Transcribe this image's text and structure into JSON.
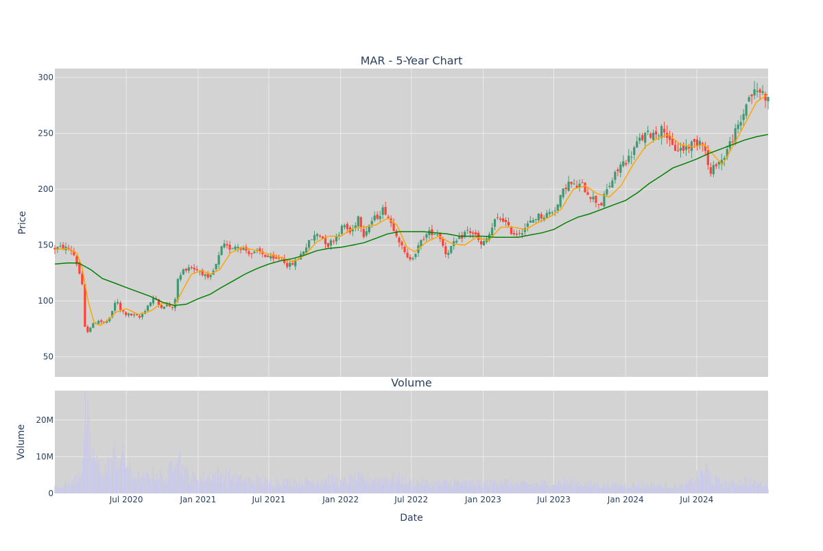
{
  "chart_data": [
    {
      "type": "candlestick",
      "title": "MAR - 5-Year Chart",
      "ylabel": "Price",
      "ylim": [
        32,
        308
      ],
      "y_ticks": [
        50,
        100,
        150,
        200,
        250,
        300
      ],
      "grid": true,
      "legend": "none",
      "series": [
        {
          "kind": "ohlc",
          "increasing_color": "#3d9970",
          "decreasing_color": "#ff4136"
        },
        {
          "kind": "line",
          "color": "#ffa500",
          "smoothing": "short moving average"
        },
        {
          "kind": "line",
          "color": "#008000",
          "smoothing": "long moving average"
        }
      ],
      "close_path": [
        [
          "2019-12-31",
          147
        ],
        [
          "2020-01-20",
          148
        ],
        [
          "2020-02-10",
          146
        ],
        [
          "2020-02-20",
          140
        ],
        [
          "2020-03-05",
          122
        ],
        [
          "2020-03-12",
          110
        ],
        [
          "2020-03-16",
          90
        ],
        [
          "2020-03-18",
          62
        ],
        [
          "2020-03-25",
          75
        ],
        [
          "2020-04-05",
          78
        ],
        [
          "2020-04-20",
          83
        ],
        [
          "2020-05-05",
          80
        ],
        [
          "2020-05-20",
          84
        ],
        [
          "2020-06-05",
          102
        ],
        [
          "2020-06-15",
          92
        ],
        [
          "2020-07-01",
          88
        ],
        [
          "2020-07-20",
          87
        ],
        [
          "2020-08-05",
          85
        ],
        [
          "2020-08-25",
          96
        ],
        [
          "2020-09-10",
          103
        ],
        [
          "2020-09-25",
          95
        ],
        [
          "2020-10-15",
          97
        ],
        [
          "2020-10-30",
          92
        ],
        [
          "2020-11-09",
          118
        ],
        [
          "2020-11-25",
          128
        ],
        [
          "2020-12-10",
          131
        ],
        [
          "2020-12-28",
          128
        ],
        [
          "2021-01-10",
          126
        ],
        [
          "2021-01-28",
          118
        ],
        [
          "2021-02-15",
          131
        ],
        [
          "2021-03-05",
          150
        ],
        [
          "2021-03-20",
          147
        ],
        [
          "2021-04-10",
          150
        ],
        [
          "2021-05-01",
          146
        ],
        [
          "2021-05-20",
          142
        ],
        [
          "2021-06-05",
          144
        ],
        [
          "2021-06-25",
          140
        ],
        [
          "2021-07-15",
          136
        ],
        [
          "2021-08-01",
          140
        ],
        [
          "2021-08-20",
          131
        ],
        [
          "2021-09-10",
          136
        ],
        [
          "2021-10-01",
          147
        ],
        [
          "2021-10-20",
          156
        ],
        [
          "2021-11-05",
          161
        ],
        [
          "2021-11-30",
          150
        ],
        [
          "2021-12-20",
          158
        ],
        [
          "2022-01-10",
          168
        ],
        [
          "2022-01-28",
          160
        ],
        [
          "2022-02-15",
          176
        ],
        [
          "2022-03-01",
          160
        ],
        [
          "2022-03-20",
          171
        ],
        [
          "2022-04-05",
          176
        ],
        [
          "2022-04-22",
          183
        ],
        [
          "2022-05-10",
          170
        ],
        [
          "2022-05-25",
          160
        ],
        [
          "2022-06-10",
          145
        ],
        [
          "2022-06-22",
          137
        ],
        [
          "2022-07-10",
          142
        ],
        [
          "2022-08-01",
          157
        ],
        [
          "2022-08-20",
          162
        ],
        [
          "2022-09-10",
          160
        ],
        [
          "2022-09-28",
          142
        ],
        [
          "2022-10-15",
          150
        ],
        [
          "2022-11-01",
          155
        ],
        [
          "2022-11-20",
          163
        ],
        [
          "2022-12-10",
          160
        ],
        [
          "2022-12-28",
          149
        ],
        [
          "2023-01-15",
          158
        ],
        [
          "2023-02-01",
          172
        ],
        [
          "2023-02-20",
          174
        ],
        [
          "2023-03-10",
          163
        ],
        [
          "2023-03-25",
          160
        ],
        [
          "2023-04-10",
          163
        ],
        [
          "2023-05-01",
          170
        ],
        [
          "2023-05-20",
          176
        ],
        [
          "2023-06-05",
          176
        ],
        [
          "2023-06-25",
          180
        ],
        [
          "2023-07-10",
          185
        ],
        [
          "2023-07-25",
          198
        ],
        [
          "2023-08-05",
          206
        ],
        [
          "2023-08-25",
          202
        ],
        [
          "2023-09-10",
          204
        ],
        [
          "2023-09-28",
          196
        ],
        [
          "2023-10-15",
          190
        ],
        [
          "2023-10-30",
          186
        ],
        [
          "2023-11-15",
          200
        ],
        [
          "2023-12-01",
          210
        ],
        [
          "2023-12-20",
          222
        ],
        [
          "2024-01-10",
          228
        ],
        [
          "2024-02-01",
          242
        ],
        [
          "2024-02-20",
          248
        ],
        [
          "2024-03-10",
          250
        ],
        [
          "2024-03-28",
          252
        ],
        [
          "2024-04-10",
          255
        ],
        [
          "2024-04-25",
          238
        ],
        [
          "2024-05-10",
          236
        ],
        [
          "2024-05-28",
          236
        ],
        [
          "2024-06-15",
          240
        ],
        [
          "2024-07-01",
          242
        ],
        [
          "2024-07-15",
          246
        ],
        [
          "2024-07-25",
          230
        ],
        [
          "2024-08-05",
          212
        ],
        [
          "2024-08-20",
          224
        ],
        [
          "2024-09-05",
          226
        ],
        [
          "2024-09-20",
          238
        ],
        [
          "2024-10-10",
          252
        ],
        [
          "2024-10-25",
          262
        ],
        [
          "2024-11-05",
          278
        ],
        [
          "2024-11-15",
          284
        ],
        [
          "2024-12-05",
          288
        ],
        [
          "2024-12-20",
          286
        ],
        [
          "2024-12-31",
          279
        ]
      ],
      "ma_short": [
        [
          "2019-12-31",
          146
        ],
        [
          "2020-02-01",
          147
        ],
        [
          "2020-02-25",
          143
        ],
        [
          "2020-03-10",
          130
        ],
        [
          "2020-03-25",
          100
        ],
        [
          "2020-04-10",
          80
        ],
        [
          "2020-04-25",
          78
        ],
        [
          "2020-05-15",
          83
        ],
        [
          "2020-06-05",
          90
        ],
        [
          "2020-07-01",
          93
        ],
        [
          "2020-08-01",
          88
        ],
        [
          "2020-09-01",
          91
        ],
        [
          "2020-10-01",
          98
        ],
        [
          "2020-11-01",
          96
        ],
        [
          "2020-11-20",
          108
        ],
        [
          "2020-12-15",
          124
        ],
        [
          "2021-01-10",
          127
        ],
        [
          "2021-02-01",
          124
        ],
        [
          "2021-02-25",
          128
        ],
        [
          "2021-03-25",
          143
        ],
        [
          "2021-04-25",
          148
        ],
        [
          "2021-06-01",
          145
        ],
        [
          "2021-07-01",
          142
        ],
        [
          "2021-08-01",
          139
        ],
        [
          "2021-09-01",
          135
        ],
        [
          "2021-10-01",
          141
        ],
        [
          "2021-11-01",
          153
        ],
        [
          "2021-12-01",
          158
        ],
        [
          "2022-01-01",
          158
        ],
        [
          "2022-02-01",
          165
        ],
        [
          "2022-03-01",
          166
        ],
        [
          "2022-04-01",
          168
        ],
        [
          "2022-05-01",
          174
        ],
        [
          "2022-05-25",
          168
        ],
        [
          "2022-06-20",
          148
        ],
        [
          "2022-07-10",
          144
        ],
        [
          "2022-08-10",
          153
        ],
        [
          "2022-09-10",
          158
        ],
        [
          "2022-10-15",
          151
        ],
        [
          "2022-11-15",
          150
        ],
        [
          "2022-12-15",
          157
        ],
        [
          "2023-01-15",
          154
        ],
        [
          "2023-02-15",
          166
        ],
        [
          "2023-03-20",
          166
        ],
        [
          "2023-04-20",
          164
        ],
        [
          "2023-05-20",
          170
        ],
        [
          "2023-06-20",
          175
        ],
        [
          "2023-07-20",
          182
        ],
        [
          "2023-08-20",
          200
        ],
        [
          "2023-09-20",
          203
        ],
        [
          "2023-10-20",
          196
        ],
        [
          "2023-11-20",
          193
        ],
        [
          "2023-12-20",
          203
        ],
        [
          "2024-01-20",
          222
        ],
        [
          "2024-02-20",
          238
        ],
        [
          "2024-03-20",
          245
        ],
        [
          "2024-04-20",
          249
        ],
        [
          "2024-05-20",
          240
        ],
        [
          "2024-06-20",
          238
        ],
        [
          "2024-07-20",
          240
        ],
        [
          "2024-08-20",
          228
        ],
        [
          "2024-09-05",
          222
        ],
        [
          "2024-10-01",
          238
        ],
        [
          "2024-11-01",
          258
        ],
        [
          "2024-12-01",
          278
        ],
        [
          "2024-12-31",
          285
        ]
      ],
      "ma_long": [
        [
          "2019-12-31",
          133
        ],
        [
          "2020-02-01",
          134
        ],
        [
          "2020-03-01",
          134
        ],
        [
          "2020-04-01",
          128
        ],
        [
          "2020-05-01",
          120
        ],
        [
          "2020-06-01",
          116
        ],
        [
          "2020-07-01",
          112
        ],
        [
          "2020-08-01",
          108
        ],
        [
          "2020-09-01",
          104
        ],
        [
          "2020-10-01",
          99
        ],
        [
          "2020-11-01",
          96
        ],
        [
          "2020-12-01",
          97
        ],
        [
          "2021-01-01",
          102
        ],
        [
          "2021-02-01",
          106
        ],
        [
          "2021-03-01",
          112
        ],
        [
          "2021-04-01",
          118
        ],
        [
          "2021-05-01",
          124
        ],
        [
          "2021-06-01",
          129
        ],
        [
          "2021-07-01",
          133
        ],
        [
          "2021-08-01",
          136
        ],
        [
          "2021-09-01",
          138
        ],
        [
          "2021-10-01",
          141
        ],
        [
          "2021-11-01",
          145
        ],
        [
          "2021-12-01",
          147
        ],
        [
          "2022-01-01",
          148
        ],
        [
          "2022-02-01",
          150
        ],
        [
          "2022-03-01",
          152
        ],
        [
          "2022-04-01",
          156
        ],
        [
          "2022-05-01",
          160
        ],
        [
          "2022-06-01",
          162
        ],
        [
          "2022-07-01",
          162
        ],
        [
          "2022-08-01",
          162
        ],
        [
          "2022-09-01",
          161
        ],
        [
          "2022-10-01",
          160
        ],
        [
          "2022-11-01",
          158
        ],
        [
          "2022-12-01",
          158
        ],
        [
          "2023-01-01",
          158
        ],
        [
          "2023-02-01",
          157
        ],
        [
          "2023-03-01",
          157
        ],
        [
          "2023-04-01",
          157
        ],
        [
          "2023-05-01",
          159
        ],
        [
          "2023-06-01",
          161
        ],
        [
          "2023-07-01",
          164
        ],
        [
          "2023-08-01",
          170
        ],
        [
          "2023-09-01",
          175
        ],
        [
          "2023-10-01",
          178
        ],
        [
          "2023-11-01",
          182
        ],
        [
          "2023-12-01",
          186
        ],
        [
          "2024-01-01",
          190
        ],
        [
          "2024-02-01",
          197
        ],
        [
          "2024-03-01",
          205
        ],
        [
          "2024-04-01",
          212
        ],
        [
          "2024-05-01",
          219
        ],
        [
          "2024-06-01",
          223
        ],
        [
          "2024-07-01",
          227
        ],
        [
          "2024-08-01",
          232
        ],
        [
          "2024-09-01",
          236
        ],
        [
          "2024-10-01",
          240
        ],
        [
          "2024-11-01",
          244
        ],
        [
          "2024-12-01",
          247
        ],
        [
          "2024-12-31",
          249
        ]
      ],
      "x_ticks": [
        {
          "date": "2020-07-01",
          "label": "Jul 2020"
        },
        {
          "date": "2021-01-01",
          "label": "Jan 2021"
        },
        {
          "date": "2021-07-01",
          "label": "Jul 2021"
        },
        {
          "date": "2022-01-01",
          "label": "Jan 2022"
        },
        {
          "date": "2022-07-01",
          "label": "Jul 2022"
        },
        {
          "date": "2023-01-01",
          "label": "Jan 2023"
        },
        {
          "date": "2023-07-01",
          "label": "Jul 2023"
        },
        {
          "date": "2024-01-01",
          "label": "Jan 2024"
        },
        {
          "date": "2024-07-01",
          "label": "Jul 2024"
        }
      ],
      "x_range": [
        "2019-12-31",
        "2024-12-31"
      ]
    },
    {
      "type": "bar",
      "title": "Volume",
      "xlabel": "Date",
      "ylabel": "Volume",
      "ylim": [
        0,
        28000000
      ],
      "y_ticks": [
        {
          "value": 0,
          "label": "0"
        },
        {
          "value": 10000000,
          "label": "10M"
        },
        {
          "value": 20000000,
          "label": "20M"
        }
      ],
      "bar_color": "#c8c8ee",
      "grid": true,
      "volume_path": [
        [
          "2020-01-15",
          2200000
        ],
        [
          "2020-02-15",
          2800000
        ],
        [
          "2020-03-02",
          5500000
        ],
        [
          "2020-03-09",
          8000000
        ],
        [
          "2020-03-16",
          14000000
        ],
        [
          "2020-03-19",
          27000000
        ],
        [
          "2020-03-23",
          19000000
        ],
        [
          "2020-03-30",
          12000000
        ],
        [
          "2020-04-06",
          11000000
        ],
        [
          "2020-04-15",
          8000000
        ],
        [
          "2020-05-01",
          6500000
        ],
        [
          "2020-05-15",
          7000000
        ],
        [
          "2020-06-01",
          10500000
        ],
        [
          "2020-06-10",
          9500000
        ],
        [
          "2020-06-25",
          10000000
        ],
        [
          "2020-07-15",
          5000000
        ],
        [
          "2020-08-15",
          4000000
        ],
        [
          "2020-09-15",
          5500000
        ],
        [
          "2020-10-15",
          4000000
        ],
        [
          "2020-11-09",
          14500000
        ],
        [
          "2020-11-20",
          7000000
        ],
        [
          "2020-12-15",
          4000000
        ],
        [
          "2021-01-15",
          4500000
        ],
        [
          "2021-02-25",
          5500000
        ],
        [
          "2021-03-15",
          5000000
        ],
        [
          "2021-05-01",
          3500000
        ],
        [
          "2021-06-01",
          3800000
        ],
        [
          "2021-07-01",
          3000000
        ],
        [
          "2021-08-01",
          3000000
        ],
        [
          "2021-10-01",
          3200000
        ],
        [
          "2021-11-01",
          3500000
        ],
        [
          "2021-12-01",
          4000000
        ],
        [
          "2022-01-01",
          3000000
        ],
        [
          "2022-02-15",
          4200000
        ],
        [
          "2022-03-15",
          3800000
        ],
        [
          "2022-05-01",
          4200000
        ],
        [
          "2022-06-01",
          4000000
        ],
        [
          "2022-07-01",
          3000000
        ],
        [
          "2022-09-01",
          2700000
        ],
        [
          "2022-11-01",
          3000000
        ],
        [
          "2023-01-01",
          2500000
        ],
        [
          "2023-02-15",
          3500000
        ],
        [
          "2023-04-01",
          2400000
        ],
        [
          "2023-06-01",
          2600000
        ],
        [
          "2023-08-01",
          3200000
        ],
        [
          "2023-10-01",
          2500000
        ],
        [
          "2023-12-01",
          2200000
        ],
        [
          "2024-02-01",
          2400000
        ],
        [
          "2024-04-01",
          2200000
        ],
        [
          "2024-06-01",
          2000000
        ],
        [
          "2024-07-28",
          7000000
        ],
        [
          "2024-08-05",
          4000000
        ],
        [
          "2024-09-15",
          2500000
        ],
        [
          "2024-11-05",
          3500000
        ],
        [
          "2024-12-31",
          2000000
        ]
      ]
    }
  ]
}
